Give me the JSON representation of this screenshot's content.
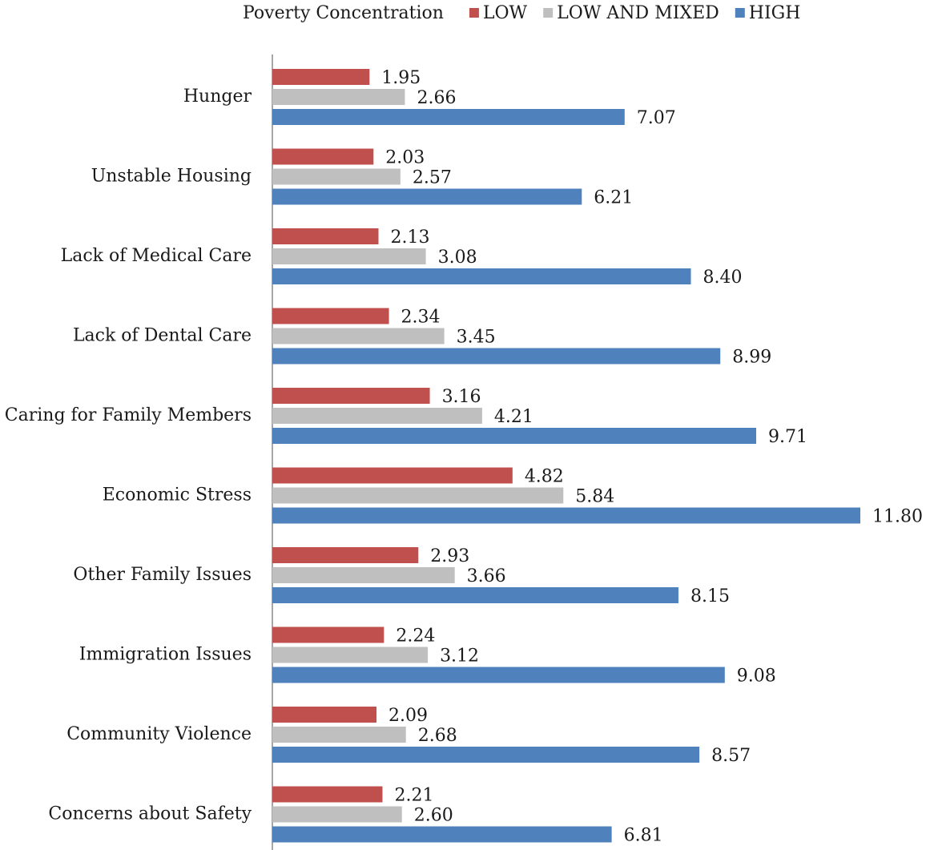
{
  "chart_data": {
    "type": "hbar",
    "legend_title": "Poverty Concentration",
    "categories": [
      "Hunger",
      "Unstable Housing",
      "Lack of Medical Care",
      "Lack of Dental Care",
      "Caring for Family Members",
      "Economic Stress",
      "Other Family Issues",
      "Immigration Issues",
      "Community Violence",
      "Concerns about Safety"
    ],
    "series": [
      {
        "name": "LOW",
        "color": "#c0504d",
        "values": [
          1.95,
          2.03,
          2.13,
          2.34,
          3.16,
          4.82,
          2.93,
          2.24,
          2.09,
          2.21
        ],
        "value_labels": [
          "1.95",
          "2.03",
          "2.13",
          "2.34",
          "3.16",
          "4.82",
          "2.93",
          "2.24",
          "2.09",
          "2.21"
        ]
      },
      {
        "name": "LOW AND MIXED",
        "color": "#bfbfbf",
        "values": [
          2.66,
          2.57,
          3.08,
          3.45,
          4.21,
          5.84,
          3.66,
          3.12,
          2.68,
          2.6
        ],
        "value_labels": [
          "2.66",
          "2.57",
          "3.08",
          "3.45",
          "4.21",
          "5.84",
          "3.66",
          "3.12",
          "2.68",
          "2.60"
        ]
      },
      {
        "name": "HIGH",
        "color": "#4f81bd",
        "values": [
          7.07,
          6.21,
          8.4,
          8.99,
          9.71,
          11.8,
          8.15,
          9.08,
          8.57,
          6.81
        ],
        "value_labels": [
          "7.07",
          "6.21",
          "8.40",
          "8.99",
          "9.71",
          "11.80",
          "8.15",
          "9.08",
          "8.57",
          "6.81"
        ]
      }
    ],
    "legend": "top"
  }
}
